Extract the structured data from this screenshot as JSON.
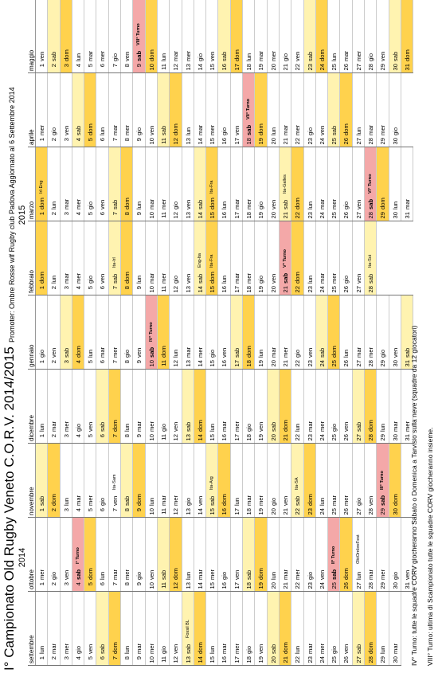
{
  "title": "I° Campionato Old Rugby Veneto C.O.R.V. 2014/2015",
  "promoter": "Promoter: Ombre Rosse wlf Rugby club Padova Aggiornato al 6 Settembre 2014",
  "years": [
    "2014",
    "2015"
  ],
  "notes": [
    "IV° Turno: tutte le squadre CORV giocheranno Sabato o Domenica a Tarvisio sulla neve (squadre da 12 giocatori)",
    "VIII° Turno: ultima di Scampionato tutte le squadre CORV giocheranno insieme."
  ],
  "day_names": [
    "lun",
    "mar",
    "mer",
    "gio",
    "ven",
    "sab",
    "dom"
  ],
  "months": [
    {
      "name": "settembre",
      "start": 0,
      "days": 30,
      "events": {
        "13": "Fossil BL"
      },
      "hl": {}
    },
    {
      "name": "ottobre",
      "start": 2,
      "days": 31,
      "events": {
        "4": "I° Turno",
        "25": "II° Turno",
        "27": "OktOmbreFest"
      },
      "hl": {
        "4": 1,
        "25": 1
      }
    },
    {
      "name": "novembre",
      "start": 5,
      "days": 30,
      "events": {
        "7": "Ita-Sam",
        "15": "Ita-Arg",
        "22": "Ita-SA",
        "29": "III° Turno"
      },
      "hl": {
        "29": 1
      }
    },
    {
      "name": "dicembre",
      "start": 0,
      "days": 31,
      "events": {},
      "hl": {}
    },
    {
      "name": "gennaio",
      "start": 3,
      "days": 31,
      "events": {
        "10": "IV° Turno"
      },
      "hl": {
        "10": 1
      }
    },
    {
      "name": "febbraio",
      "start": 6,
      "days": 28,
      "events": {
        "7": "Ita-Irl",
        "14": "Eng-Ita",
        "15": "Ita-Fra",
        "21": "V° Turno",
        "28": "Ita-Sct"
      },
      "hl": {
        "21": 1
      }
    },
    {
      "name": "marzo",
      "start": 6,
      "days": 31,
      "events": {
        "1": "Irl-Eng",
        "15": "Ita-Fra",
        "21": "Ita-Galles",
        "28": "VI° Turno"
      },
      "hl": {
        "28": 1
      }
    },
    {
      "name": "aprile",
      "start": 2,
      "days": 30,
      "events": {
        "18": "VII° Turno"
      },
      "hl": {
        "18": 1
      }
    },
    {
      "name": "maggio",
      "start": 4,
      "days": 31,
      "events": {
        "9": "VIII° Turno"
      },
      "hl": {
        "9": 1
      }
    }
  ]
}
